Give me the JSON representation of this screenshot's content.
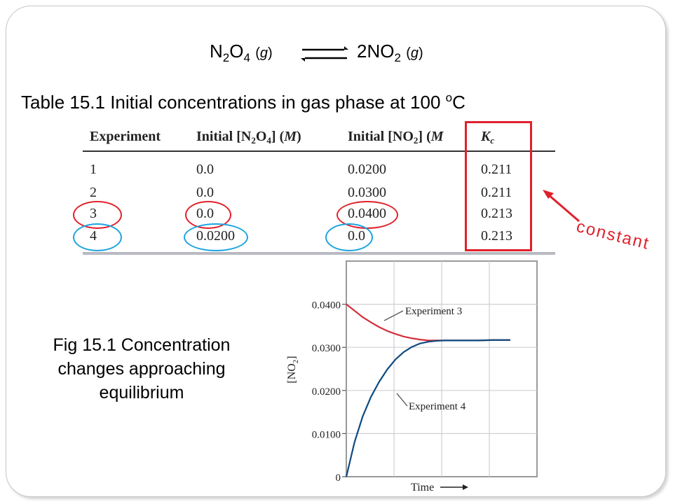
{
  "equation": {
    "reactant_count": "",
    "reactant_n": "N",
    "reactant_n_sub": "2",
    "reactant_o": "O",
    "reactant_o_sub": "4",
    "reactant_phase": "g",
    "product_coeff": "2",
    "product_n": "N",
    "product_o": "O",
    "product_o_sub": "2",
    "product_phase": "g"
  },
  "table_caption": {
    "text": "Table 15.1  Initial concentrations in gas phase at 100 ",
    "degree": "o",
    "unit": "C"
  },
  "table": {
    "headers": {
      "experiment": "Experiment",
      "n2o4_pre": "Initial [N",
      "n2o4_sub1": "2",
      "n2o4_mid": "O",
      "n2o4_sub2": "4",
      "n2o4_post": "] (",
      "n2o4_unit": "M",
      "n2o4_close": ")",
      "no2_pre": "Initial [NO",
      "no2_sub": "2",
      "no2_post": "] (",
      "no2_unit": "M",
      "kc_k": "K",
      "kc_sub": "c"
    },
    "rows": [
      {
        "experiment": "1",
        "n2o4": "0.0",
        "no2": "0.0200",
        "kc": "0.211"
      },
      {
        "experiment": "2",
        "n2o4": "0.0",
        "no2": "0.0300",
        "kc": "0.211"
      },
      {
        "experiment": "3",
        "n2o4": "0.0",
        "no2": "0.0400",
        "kc": "0.213"
      },
      {
        "experiment": "4",
        "n2o4": "0.0200",
        "no2": "0.0",
        "kc": "0.213"
      }
    ]
  },
  "annotation": {
    "constant_label": "constant",
    "highlight_red": "#e0202a",
    "highlight_blue": "#1ba3e0"
  },
  "fig_caption": {
    "line1": "Fig 15.1  Concentration",
    "line2": "changes approaching",
    "line3": "equilibrium"
  },
  "chart_data": {
    "type": "line",
    "title": "",
    "xlabel": "Time",
    "ylabel": "[NO2]",
    "ylabel_main": "[NO",
    "ylabel_sub": "2",
    "ylabel_close": "]",
    "ylim": [
      0,
      0.05
    ],
    "xlim": [
      0,
      10
    ],
    "yticks": [
      0,
      0.01,
      0.02,
      0.03,
      0.04
    ],
    "ytick_labels": [
      "0",
      "0.0100",
      "0.0200",
      "0.0300",
      "0.0400"
    ],
    "grid": true,
    "series": [
      {
        "name": "Experiment 3",
        "color": "#d32f3c",
        "x": [
          0,
          0.5,
          1,
          1.5,
          2,
          2.5,
          3,
          3.5,
          4,
          4.5,
          5,
          5.5,
          6,
          7,
          8,
          9,
          10
        ],
        "y": [
          0.04,
          0.0385,
          0.037,
          0.0358,
          0.0347,
          0.0338,
          0.0331,
          0.0325,
          0.0321,
          0.0318,
          0.0316,
          0.0316,
          0.0316,
          0.0316,
          0.0316,
          0.0317,
          0.0317
        ]
      },
      {
        "name": "Experiment 4",
        "color": "#0e4a80",
        "x": [
          0,
          0.5,
          1,
          1.5,
          2,
          2.5,
          3,
          3.5,
          4,
          4.5,
          5,
          5.5,
          6,
          7,
          8,
          9,
          10
        ],
        "y": [
          0.0,
          0.008,
          0.014,
          0.0185,
          0.022,
          0.0249,
          0.0272,
          0.0289,
          0.0301,
          0.0309,
          0.0313,
          0.0315,
          0.0316,
          0.0316,
          0.0316,
          0.0317,
          0.0317
        ]
      }
    ]
  }
}
